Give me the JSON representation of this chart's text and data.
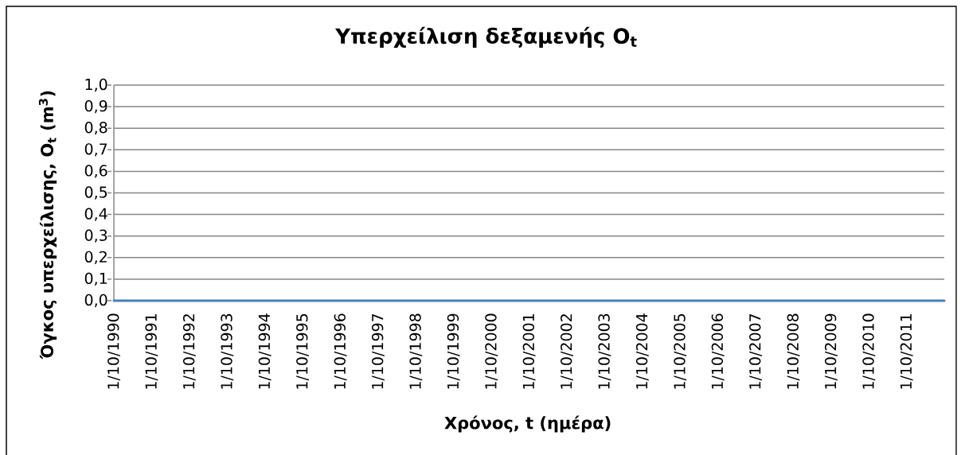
{
  "chart_data": {
    "type": "line",
    "title": "Υπερχείλιση δεξαμενής O$_{t}$",
    "xlabel": "Χρόνος, t (ημέρα)",
    "ylabel": "Όγκος υπερχείλισης, O$_{t}$ (m$^{3}$)",
    "x": [
      "1990-10-01",
      "1991-10-01",
      "1992-10-01",
      "1993-10-01",
      "1994-10-01",
      "1995-10-01",
      "1996-10-01",
      "1997-10-01",
      "1998-10-01",
      "1999-10-01",
      "2000-10-01",
      "2001-10-01",
      "2002-10-01",
      "2003-10-01",
      "2004-10-01",
      "2005-10-01",
      "2006-10-01",
      "2007-10-01",
      "2008-10-01",
      "2009-10-01",
      "2010-10-01",
      "2011-10-01",
      "2012-09-30"
    ],
    "series": [
      {
        "color": "#4a7ebb",
        "values": [
          0,
          0,
          0,
          0,
          0,
          0,
          0,
          0,
          0,
          0,
          0,
          0,
          0,
          0,
          0,
          0,
          0,
          0,
          0,
          0,
          0,
          0,
          0
        ]
      }
    ],
    "xlim": [
      "1990-10-01",
      "2012-09-30"
    ],
    "xticks": [
      {
        "value": "1990-10-01",
        "label": "1/10/1990"
      },
      {
        "value": "1991-10-01",
        "label": "1/10/1991"
      },
      {
        "value": "1992-10-01",
        "label": "1/10/1992"
      },
      {
        "value": "1993-10-01",
        "label": "1/10/1993"
      },
      {
        "value": "1994-10-01",
        "label": "1/10/1994"
      },
      {
        "value": "1995-10-01",
        "label": "1/10/1995"
      },
      {
        "value": "1996-10-01",
        "label": "1/10/1996"
      },
      {
        "value": "1997-10-01",
        "label": "1/10/1997"
      },
      {
        "value": "1998-10-01",
        "label": "1/10/1998"
      },
      {
        "value": "1999-10-01",
        "label": "1/10/1999"
      },
      {
        "value": "2000-10-01",
        "label": "1/10/2000"
      },
      {
        "value": "2001-10-01",
        "label": "1/10/2001"
      },
      {
        "value": "2002-10-01",
        "label": "1/10/2002"
      },
      {
        "value": "2003-10-01",
        "label": "1/10/2003"
      },
      {
        "value": "2004-10-01",
        "label": "1/10/2004"
      },
      {
        "value": "2005-10-01",
        "label": "1/10/2005"
      },
      {
        "value": "2006-10-01",
        "label": "1/10/2006"
      },
      {
        "value": "2007-10-01",
        "label": "1/10/2007"
      },
      {
        "value": "2008-10-01",
        "label": "1/10/2008"
      },
      {
        "value": "2009-10-01",
        "label": "1/10/2009"
      },
      {
        "value": "2010-10-01",
        "label": "1/10/2010"
      },
      {
        "value": "2011-10-01",
        "label": "1/10/2011"
      }
    ],
    "ylim": [
      0,
      1
    ],
    "yticks": [
      {
        "value": 0,
        "label": "0,0"
      },
      {
        "value": 0.1,
        "label": "0,1"
      },
      {
        "value": 0.2,
        "label": "0,2"
      },
      {
        "value": 0.3,
        "label": "0,3"
      },
      {
        "value": 0.4,
        "label": "0,4"
      },
      {
        "value": 0.5,
        "label": "0,5"
      },
      {
        "value": 0.6,
        "label": "0,6"
      },
      {
        "value": 0.7,
        "label": "0,7"
      },
      {
        "value": 0.8,
        "label": "0,8"
      },
      {
        "value": 0.9,
        "label": "0,9"
      },
      {
        "value": 1,
        "label": "1,0"
      }
    ],
    "grid": "y"
  }
}
